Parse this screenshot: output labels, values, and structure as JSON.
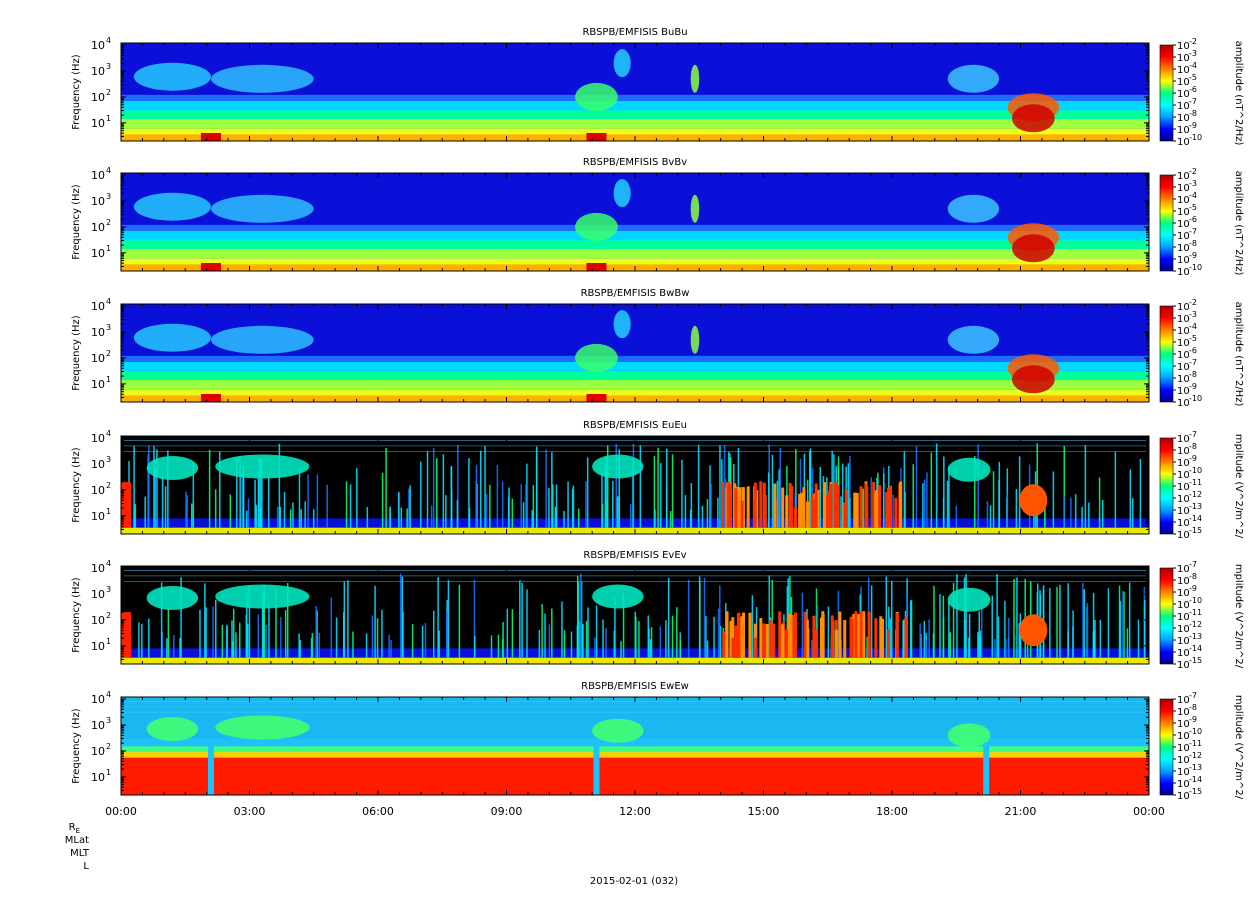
{
  "figure": {
    "date_label": "2015-02-01 (032)",
    "ephemeris_labels": [
      "R",
      "MLat",
      "MLT",
      "L"
    ],
    "ephemeris_subscript": "E"
  },
  "chart_data": [
    {
      "type": "heatmap",
      "title": "RBSPB/EMFISIS  BuBu",
      "ylabel": "Frequency (Hz)",
      "yscale": "log",
      "ylim": [
        2,
        12000
      ],
      "ytick_exponents": [
        1,
        2,
        3,
        4
      ],
      "xlim": [
        "00:00",
        "24:00"
      ],
      "colorbar": {
        "label": "amplitude (nT^2/Hz)",
        "scale": "log",
        "range": [
          -10,
          -2
        ],
        "tick_exponents": [
          -2,
          -3,
          -4,
          -5,
          -6,
          -7,
          -8,
          -9,
          -10
        ],
        "colors": [
          "#00008b",
          "#0000ff",
          "#00a0ff",
          "#00ffff",
          "#00ff80",
          "#ffff00",
          "#ff8000",
          "#ff0000",
          "#b00000"
        ]
      },
      "background_level": "blue",
      "noise_floor_level": "green-yellow"
    },
    {
      "type": "heatmap",
      "title": "RBSPB/EMFISIS  BvBv",
      "ylabel": "Frequency (Hz)",
      "yscale": "log",
      "ylim": [
        2,
        12000
      ],
      "ytick_exponents": [
        1,
        2,
        3,
        4
      ],
      "xlim": [
        "00:00",
        "24:00"
      ],
      "colorbar": {
        "label": "amplitude (nT^2/Hz)",
        "scale": "log",
        "range": [
          -10,
          -2
        ],
        "tick_exponents": [
          -2,
          -3,
          -4,
          -5,
          -6,
          -7,
          -8,
          -9,
          -10
        ],
        "colors": [
          "#00008b",
          "#0000ff",
          "#00a0ff",
          "#00ffff",
          "#00ff80",
          "#ffff00",
          "#ff8000",
          "#ff0000",
          "#b00000"
        ]
      },
      "background_level": "blue",
      "noise_floor_level": "green-yellow"
    },
    {
      "type": "heatmap",
      "title": "RBSPB/EMFISIS  BwBw",
      "ylabel": "Frequency (Hz)",
      "yscale": "log",
      "ylim": [
        2,
        12000
      ],
      "ytick_exponents": [
        1,
        2,
        3,
        4
      ],
      "xlim": [
        "00:00",
        "24:00"
      ],
      "colorbar": {
        "label": "amplitude (nT^2/Hz)",
        "scale": "log",
        "range": [
          -10,
          -2
        ],
        "tick_exponents": [
          -2,
          -3,
          -4,
          -5,
          -6,
          -7,
          -8,
          -9,
          -10
        ],
        "colors": [
          "#00008b",
          "#0000ff",
          "#00a0ff",
          "#00ffff",
          "#00ff80",
          "#ffff00",
          "#ff8000",
          "#ff0000",
          "#b00000"
        ]
      },
      "background_level": "blue",
      "noise_floor_level": "green"
    },
    {
      "type": "heatmap",
      "title": "RBSPB/EMFISIS  EuEu",
      "ylabel": "Frequency (Hz)",
      "yscale": "log",
      "ylim": [
        2,
        12000
      ],
      "ytick_exponents": [
        1,
        2,
        3,
        4
      ],
      "xlim": [
        "00:00",
        "24:00"
      ],
      "colorbar": {
        "label": "mplitude (V^2/m^2/",
        "scale": "log",
        "range": [
          -15,
          -7
        ],
        "tick_exponents": [
          -7,
          -8,
          -9,
          -10,
          -11,
          -12,
          -13,
          -14,
          -15
        ],
        "colors": [
          "#00008b",
          "#0000ff",
          "#00a0ff",
          "#00ffff",
          "#00ff80",
          "#ffff00",
          "#ff8000",
          "#ff0000",
          "#b00000"
        ]
      },
      "background_level": "black",
      "noise_floor_level": "yellow"
    },
    {
      "type": "heatmap",
      "title": "RBSPB/EMFISIS  EvEv",
      "ylabel": "Frequency (Hz)",
      "yscale": "log",
      "ylim": [
        2,
        12000
      ],
      "ytick_exponents": [
        1,
        2,
        3,
        4
      ],
      "xlim": [
        "00:00",
        "24:00"
      ],
      "colorbar": {
        "label": "mplitude (V^2/m^2/",
        "scale": "log",
        "range": [
          -15,
          -7
        ],
        "tick_exponents": [
          -7,
          -8,
          -9,
          -10,
          -11,
          -12,
          -13,
          -14,
          -15
        ],
        "colors": [
          "#00008b",
          "#0000ff",
          "#00a0ff",
          "#00ffff",
          "#00ff80",
          "#ffff00",
          "#ff8000",
          "#ff0000",
          "#b00000"
        ]
      },
      "background_level": "black",
      "noise_floor_level": "yellow"
    },
    {
      "type": "heatmap",
      "title": "RBSPB/EMFISIS  EwEw",
      "ylabel": "Frequency (Hz)",
      "yscale": "log",
      "ylim": [
        2,
        12000
      ],
      "ytick_exponents": [
        1,
        2,
        3,
        4
      ],
      "xlim": [
        "00:00",
        "24:00"
      ],
      "xtick_labels": [
        "00:00",
        "03:00",
        "06:00",
        "09:00",
        "12:00",
        "15:00",
        "18:00",
        "21:00",
        "00:00"
      ],
      "colorbar": {
        "label": "mplitude (V^2/m^2/",
        "scale": "log",
        "range": [
          -15,
          -7
        ],
        "tick_exponents": [
          -7,
          -8,
          -9,
          -10,
          -11,
          -12,
          -13,
          -14,
          -15
        ],
        "colors": [
          "#00008b",
          "#0000ff",
          "#00a0ff",
          "#00ffff",
          "#00ff80",
          "#ffff00",
          "#ff8000",
          "#ff0000",
          "#b00000"
        ]
      },
      "background_level": "cyan",
      "noise_floor_level": "red"
    }
  ]
}
